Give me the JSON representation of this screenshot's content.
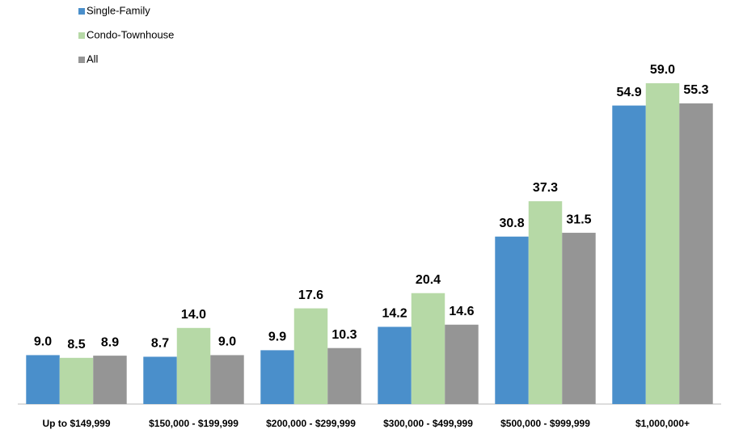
{
  "chart_data": {
    "type": "bar",
    "categories": [
      "Up to $149,999",
      "$150,000 - $199,999",
      "$200,000 - $299,999",
      "$300,000 - $499,999",
      "$500,000 - $999,999",
      "$1,000,000+"
    ],
    "series": [
      {
        "name": "Single-Family",
        "color": "#4a8fcb",
        "values": [
          9.0,
          8.7,
          9.9,
          14.2,
          30.8,
          54.9
        ],
        "value_labels": [
          "9.0",
          "8.7",
          "9.9",
          "14.2",
          "30.8",
          "54.9"
        ]
      },
      {
        "name": "Condo-Townhouse",
        "color": "#b6d9a6",
        "values": [
          8.5,
          14.0,
          17.6,
          20.4,
          37.3,
          59.0
        ],
        "value_labels": [
          "8.5",
          "14.0",
          "17.6",
          "20.4",
          "37.3",
          "59.0"
        ]
      },
      {
        "name": "All",
        "color": "#959595",
        "values": [
          8.9,
          9.0,
          10.3,
          14.6,
          31.5,
          55.3
        ],
        "value_labels": [
          "8.9",
          "9.0",
          "10.3",
          "14.6",
          "31.5",
          "55.3"
        ]
      }
    ],
    "ylim": [
      0,
      70
    ],
    "legend": "top-left"
  }
}
